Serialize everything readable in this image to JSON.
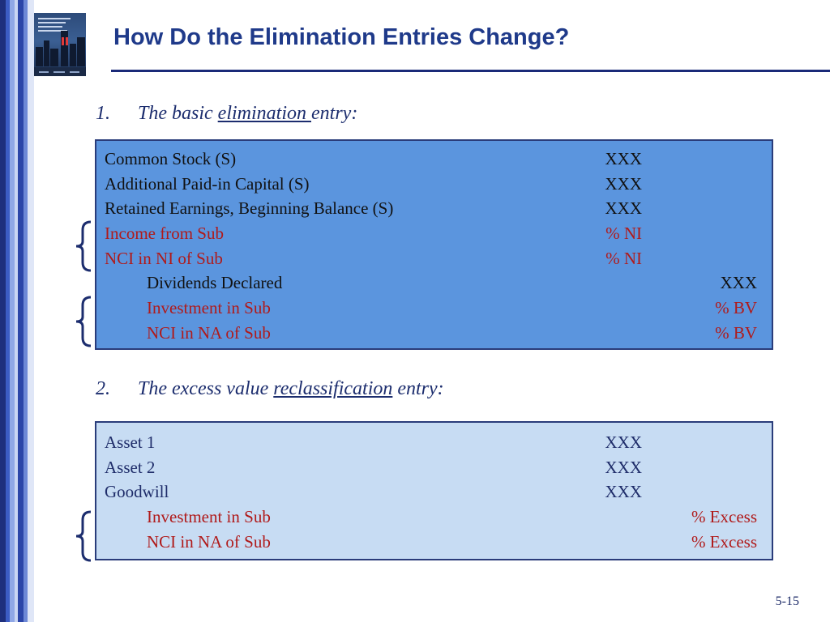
{
  "slide": {
    "title": "How Do the Elimination Entries Change?",
    "number": "5-15"
  },
  "colors": {
    "title": "#1f3a8a",
    "rule": "#1a2a78",
    "box1_fill": "#5b95de",
    "box2_fill": "#c7dcf3",
    "highlight_text": "#b01a1a"
  },
  "book_icon": "textbook-cover-icon",
  "section1": {
    "number": "1.",
    "before": "The basic ",
    "emphasis": "elimination ",
    "after": "entry:",
    "rows": [
      {
        "account": "Common Stock (S)",
        "debit": "XXX",
        "credit": ""
      },
      {
        "account": "Additional Paid-in Capital (S)",
        "debit": "XXX",
        "credit": ""
      },
      {
        "account": "Retained Earnings, Beginning Balance (S)",
        "debit": "XXX",
        "credit": ""
      },
      {
        "account": "Income from Sub",
        "debit": "% NI",
        "credit": ""
      },
      {
        "account": "NCI in NI of Sub",
        "debit": "% NI",
        "credit": ""
      },
      {
        "account": "Dividends Declared",
        "debit": "",
        "credit": "XXX"
      },
      {
        "account": "Investment in Sub",
        "debit": "",
        "credit": "% BV"
      },
      {
        "account": "NCI in NA of Sub",
        "debit": "",
        "credit": "% BV"
      }
    ]
  },
  "section2": {
    "number": "2.",
    "before": "The excess value ",
    "emphasis": "reclassification",
    "after": " entry:",
    "rows": [
      {
        "account": "Asset 1",
        "debit": "XXX",
        "credit": ""
      },
      {
        "account": "Asset 2",
        "debit": "XXX",
        "credit": ""
      },
      {
        "account": "Goodwill",
        "debit": "XXX",
        "credit": ""
      },
      {
        "account": "Investment in Sub",
        "debit": "",
        "credit": "% Excess"
      },
      {
        "account": "NCI in NA of Sub",
        "debit": "",
        "credit": "% Excess"
      }
    ]
  }
}
